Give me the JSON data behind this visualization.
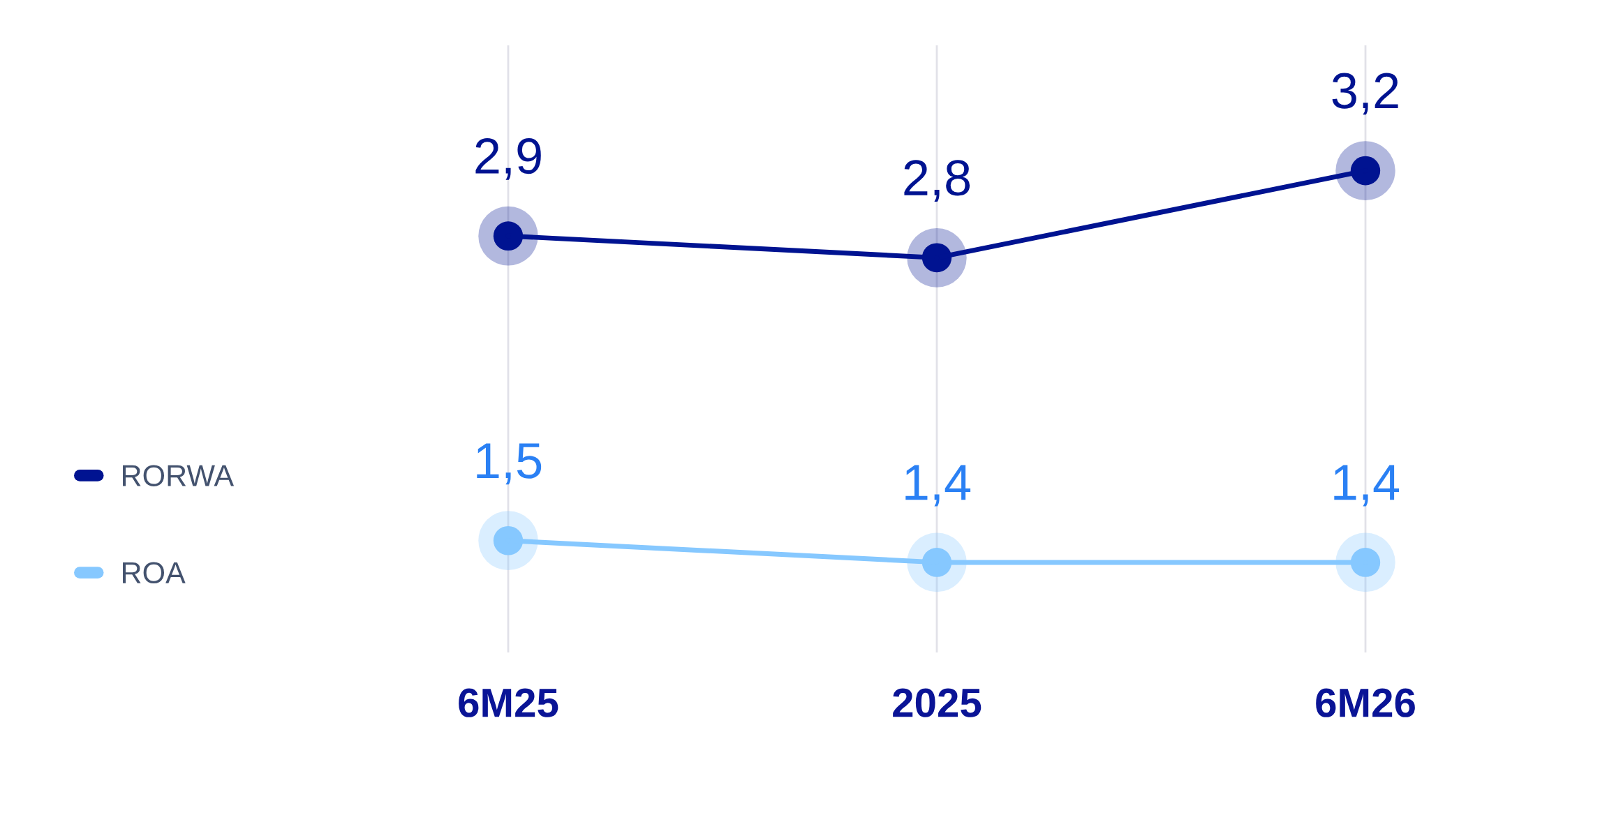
{
  "chart_data": {
    "type": "line",
    "categories": [
      "6M25",
      "2025",
      "6M26"
    ],
    "series": [
      {
        "name": "RORWA",
        "color": "#001391",
        "values": [
          2.9,
          2.8,
          3.2
        ],
        "value_labels": [
          "2,9",
          "2,8",
          "3,2"
        ]
      },
      {
        "name": "ROA",
        "color": "#86C8FF",
        "values": [
          1.5,
          1.4,
          1.4
        ],
        "value_labels": [
          "1,5",
          "1,4",
          "1,4"
        ]
      }
    ],
    "marker": "circle",
    "line_style": "solid",
    "grid": "x",
    "legend": "left",
    "tick_labels": "x"
  }
}
